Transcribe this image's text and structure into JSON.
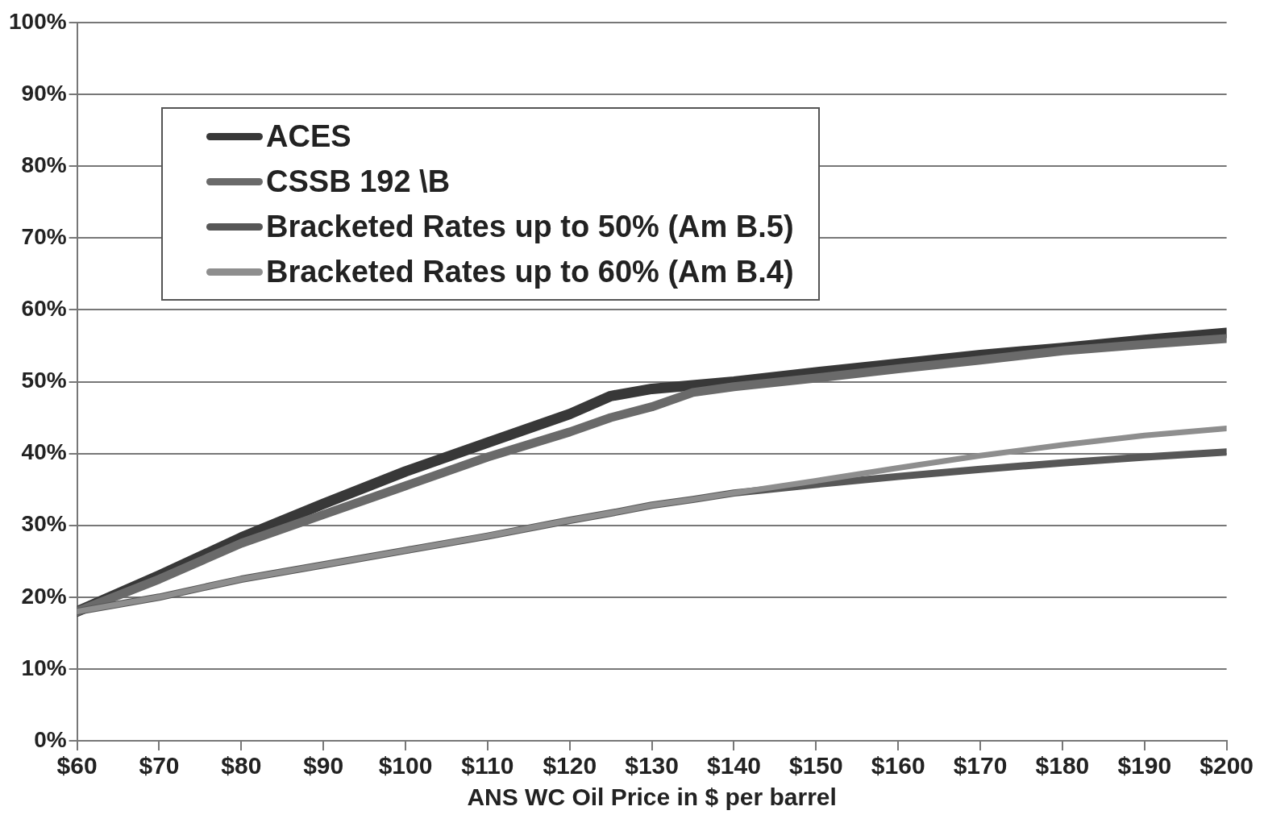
{
  "chart_data": {
    "type": "line",
    "xlabel": "ANS WC Oil Price in $ per barrel",
    "x": [
      60,
      70,
      80,
      90,
      100,
      110,
      120,
      125,
      130,
      135,
      140,
      150,
      160,
      170,
      180,
      190,
      200
    ],
    "series": [
      {
        "name": "ACES",
        "color": "#383838",
        "values": [
          18,
          23,
          28.3,
          33,
          37.5,
          41.5,
          45.5,
          48,
          49,
          49.5,
          50,
          51.3,
          52.5,
          53.7,
          54.7,
          55.8,
          56.8
        ]
      },
      {
        "name": "CSSB 192 \\B",
        "color": "#6a6a6a",
        "values": [
          18,
          22.5,
          27.5,
          31.5,
          35.5,
          39.5,
          43,
          45,
          46.5,
          48.5,
          49.3,
          50.5,
          51.8,
          53,
          54.3,
          55.2,
          56
        ]
      },
      {
        "name": "Bracketed Rates up to 50% (Am B.5)",
        "color": "#575757",
        "values": [
          18,
          20,
          22.5,
          24.5,
          26.5,
          28.5,
          30.7,
          31.7,
          32.8,
          33.6,
          34.5,
          35.7,
          36.8,
          37.8,
          38.7,
          39.5,
          40.2
        ]
      },
      {
        "name": "Bracketed Rates up to 60% (Am B.4)",
        "color": "#8e8e8e",
        "values": [
          18,
          20,
          22.5,
          24.5,
          26.5,
          28.5,
          30.7,
          31.7,
          32.8,
          33.6,
          34.5,
          36.2,
          38,
          39.7,
          41.2,
          42.5,
          43.5
        ]
      }
    ],
    "xlim": [
      60,
      200
    ],
    "xticks": [
      {
        "value": 60,
        "label": "$60"
      },
      {
        "value": 70,
        "label": "$70"
      },
      {
        "value": 80,
        "label": "$80"
      },
      {
        "value": 90,
        "label": "$90"
      },
      {
        "value": 100,
        "label": "$100"
      },
      {
        "value": 110,
        "label": "$110"
      },
      {
        "value": 120,
        "label": "$120"
      },
      {
        "value": 130,
        "label": "$130"
      },
      {
        "value": 140,
        "label": "$140"
      },
      {
        "value": 150,
        "label": "$150"
      },
      {
        "value": 160,
        "label": "$160"
      },
      {
        "value": 170,
        "label": "$170"
      },
      {
        "value": 180,
        "label": "$180"
      },
      {
        "value": 190,
        "label": "$190"
      },
      {
        "value": 200,
        "label": "$200"
      }
    ],
    "ylim": [
      0,
      100
    ],
    "yticks": [
      {
        "value": 0,
        "label": "0%"
      },
      {
        "value": 10,
        "label": "10%"
      },
      {
        "value": 20,
        "label": "20%"
      },
      {
        "value": 30,
        "label": "30%"
      },
      {
        "value": 40,
        "label": "40%"
      },
      {
        "value": 50,
        "label": "50%"
      },
      {
        "value": 60,
        "label": "60%"
      },
      {
        "value": 70,
        "label": "70%"
      },
      {
        "value": 80,
        "label": "80%"
      },
      {
        "value": 90,
        "label": "90%"
      },
      {
        "value": 100,
        "label": "100%"
      }
    ],
    "grid": "y",
    "legend": "top left",
    "marker": "none",
    "line_style": "solid"
  }
}
